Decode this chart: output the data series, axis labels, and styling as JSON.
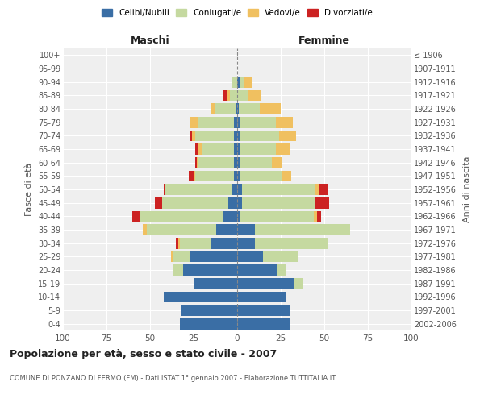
{
  "age_groups": [
    "0-4",
    "5-9",
    "10-14",
    "15-19",
    "20-24",
    "25-29",
    "30-34",
    "35-39",
    "40-44",
    "45-49",
    "50-54",
    "55-59",
    "60-64",
    "65-69",
    "70-74",
    "75-79",
    "80-84",
    "85-89",
    "90-94",
    "95-99",
    "100+"
  ],
  "birth_years": [
    "2002-2006",
    "1997-2001",
    "1992-1996",
    "1987-1991",
    "1982-1986",
    "1977-1981",
    "1972-1976",
    "1967-1971",
    "1962-1966",
    "1957-1961",
    "1952-1956",
    "1947-1951",
    "1942-1946",
    "1937-1941",
    "1932-1936",
    "1927-1931",
    "1922-1926",
    "1917-1921",
    "1912-1916",
    "1907-1911",
    "≤ 1906"
  ],
  "maschi": {
    "celibi": [
      33,
      32,
      42,
      25,
      31,
      27,
      15,
      12,
      8,
      5,
      3,
      2,
      2,
      2,
      2,
      2,
      1,
      0,
      0,
      0,
      0
    ],
    "coniugati": [
      0,
      0,
      0,
      0,
      6,
      10,
      18,
      40,
      48,
      38,
      38,
      22,
      20,
      18,
      22,
      20,
      12,
      4,
      3,
      0,
      0
    ],
    "vedovi": [
      0,
      0,
      0,
      0,
      0,
      1,
      1,
      2,
      0,
      0,
      0,
      1,
      1,
      2,
      2,
      5,
      2,
      2,
      0,
      0,
      0
    ],
    "divorziati": [
      0,
      0,
      0,
      0,
      0,
      0,
      1,
      0,
      4,
      4,
      1,
      3,
      1,
      2,
      1,
      0,
      0,
      2,
      0,
      0,
      0
    ]
  },
  "femmine": {
    "nubili": [
      30,
      30,
      28,
      33,
      23,
      15,
      10,
      10,
      2,
      3,
      3,
      2,
      2,
      2,
      2,
      2,
      1,
      0,
      2,
      0,
      0
    ],
    "coniugate": [
      0,
      0,
      0,
      5,
      5,
      20,
      42,
      55,
      42,
      42,
      42,
      24,
      18,
      20,
      22,
      20,
      12,
      6,
      2,
      0,
      0
    ],
    "vedove": [
      0,
      0,
      0,
      0,
      0,
      0,
      0,
      0,
      2,
      0,
      2,
      5,
      6,
      8,
      10,
      10,
      12,
      8,
      5,
      0,
      0
    ],
    "divorziate": [
      0,
      0,
      0,
      0,
      0,
      0,
      0,
      0,
      2,
      8,
      5,
      0,
      0,
      0,
      0,
      0,
      0,
      0,
      0,
      0,
      0
    ]
  },
  "colors": {
    "celibi": "#3a6ea5",
    "coniugati": "#c5d9a0",
    "vedovi": "#f0c060",
    "divorziati": "#cc2222"
  },
  "xlim": 100,
  "title": "Popolazione per età, sesso e stato civile - 2007",
  "subtitle": "COMUNE DI PONZANO DI FERMO (FM) - Dati ISTAT 1° gennaio 2007 - Elaborazione TUTTITALIA.IT",
  "ylabel_left": "Fasce di età",
  "ylabel_right": "Anni di nascita",
  "xlabel_maschi": "Maschi",
  "xlabel_femmine": "Femmine",
  "legend_labels": [
    "Celibi/Nubili",
    "Coniugati/e",
    "Vedovi/e",
    "Divorziati/e"
  ],
  "background_color": "#ffffff",
  "plot_bg_color": "#efefef"
}
